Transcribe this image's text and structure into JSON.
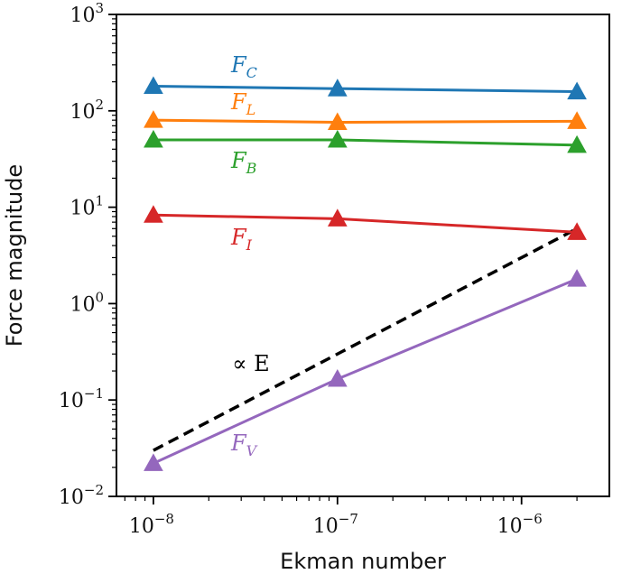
{
  "chart_data": {
    "type": "line",
    "xlabel": "Ekman number",
    "ylabel": "Force magnitude",
    "xscale": "log",
    "yscale": "log",
    "xlim": [
      6.3e-09,
      3e-06
    ],
    "ylim": [
      0.01,
      1000
    ],
    "x_ticks": [
      {
        "value": 1e-08,
        "base": "10",
        "exp": "−8"
      },
      {
        "value": 1e-07,
        "base": "10",
        "exp": "−7"
      },
      {
        "value": 1e-06,
        "base": "10",
        "exp": "−6"
      }
    ],
    "y_ticks": [
      {
        "value": 0.01,
        "base": "10",
        "exp": "−2"
      },
      {
        "value": 0.1,
        "base": "10",
        "exp": "−1"
      },
      {
        "value": 1,
        "base": "10",
        "exp": "0"
      },
      {
        "value": 10,
        "base": "10",
        "exp": "1"
      },
      {
        "value": 100,
        "base": "10",
        "exp": "2"
      },
      {
        "value": 1000,
        "base": "10",
        "exp": "3"
      }
    ],
    "grid": false,
    "series": [
      {
        "name": "F",
        "sub": "C",
        "color": "#1f77b4",
        "marker": "triangle",
        "x": [
          1e-08,
          1e-07,
          2e-06
        ],
        "y": [
          180,
          170,
          158
        ]
      },
      {
        "name": "F",
        "sub": "L",
        "color": "#ff7f0e",
        "marker": "triangle",
        "x": [
          1e-08,
          1e-07,
          2e-06
        ],
        "y": [
          80,
          76,
          78
        ]
      },
      {
        "name": "F",
        "sub": "B",
        "color": "#2ca02c",
        "marker": "triangle",
        "x": [
          1e-08,
          1e-07,
          2e-06
        ],
        "y": [
          50,
          50,
          44
        ]
      },
      {
        "name": "F",
        "sub": "I",
        "color": "#d62728",
        "marker": "triangle",
        "x": [
          1e-08,
          1e-07,
          2e-06
        ],
        "y": [
          8.3,
          7.6,
          5.5
        ]
      },
      {
        "name": "F",
        "sub": "V",
        "color": "#9467bd",
        "marker": "triangle",
        "x": [
          1e-08,
          1e-07,
          2e-06
        ],
        "y": [
          0.022,
          0.165,
          1.8
        ]
      }
    ],
    "reference_line": {
      "label": "∝ E",
      "style": "dashed",
      "color": "#000000",
      "x": [
        1e-08,
        2e-06
      ],
      "y": [
        0.03,
        6.0
      ]
    }
  }
}
